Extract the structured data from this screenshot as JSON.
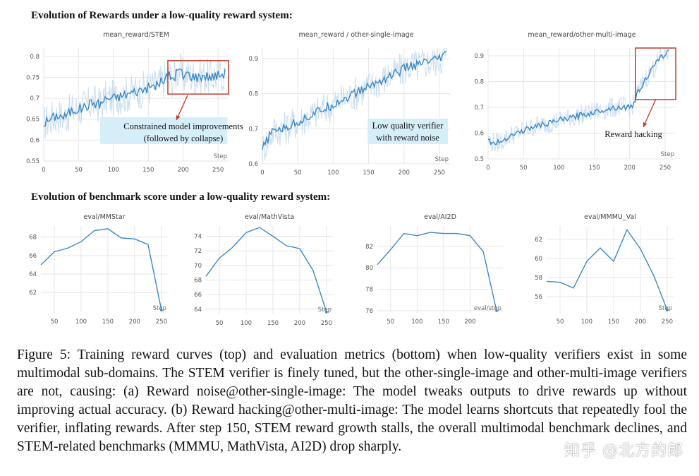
{
  "sections": {
    "top_title": "Evolution of Rewards under a low-quality reward system:",
    "bottom_title": "Evolution of benchmark score under a low-quality reward system:"
  },
  "caption": "Figure 5: Training reward curves (top) and evaluation metrics (bottom) when low-quality verifiers exist in some multimodal sub-domains. The STEM verifier is finely tuned, but the other-single-image and other-multi-image verifiers are not, causing: (a) Reward noise@other-single-image: The model tweaks outputs to drive rewards up without improving actual accuracy. (b) Reward hacking@other-multi-image: The model learns shortcuts that repeatedly fool the verifier, inflating rewards. After step 150, STEM reward growth stalls, the overall multimodal benchmark declines, and STEM-related benchmarks (MMMU, MathVista, AI2D) drop sharply.",
  "watermark": "知乎 @北方的郎",
  "colors": {
    "line": "#3a86c8",
    "noise": "#c9ddf0",
    "highlight_box": "#c0392b",
    "annotation_bg": "#d6eef8"
  },
  "chart_data": [
    {
      "id": "stem",
      "type": "line",
      "title": "mean_reward/STEM",
      "xlabel": "Step",
      "xlim": [
        0,
        265
      ],
      "ylim": [
        0.55,
        0.82
      ],
      "xticks": [
        0,
        50,
        100,
        150,
        200,
        250
      ],
      "yticks": [
        0.55,
        0.6,
        0.65,
        0.7,
        0.75,
        0.8
      ],
      "ytick_labels": [
        "0.55",
        "0.6",
        "0.65",
        "0.7",
        "0.75",
        "0.8"
      ],
      "x": [
        0,
        10,
        20,
        30,
        40,
        50,
        60,
        70,
        80,
        90,
        100,
        110,
        120,
        130,
        140,
        150,
        160,
        170,
        180,
        185,
        190,
        195,
        200,
        205,
        210,
        220,
        230,
        240,
        250,
        260
      ],
      "y": [
        0.64,
        0.65,
        0.66,
        0.655,
        0.67,
        0.675,
        0.68,
        0.69,
        0.685,
        0.7,
        0.7,
        0.705,
        0.71,
        0.715,
        0.72,
        0.725,
        0.73,
        0.74,
        0.755,
        0.745,
        0.76,
        0.77,
        0.75,
        0.76,
        0.755,
        0.75,
        0.755,
        0.75,
        0.755,
        0.76
      ],
      "noise_amplitude": 0.045,
      "highlight": {
        "x": [
          178,
          265
        ],
        "y": [
          0.71,
          0.79
        ]
      },
      "annotation": {
        "lines": [
          "Constrained model improvements",
          "(followed by collapse)"
        ]
      }
    },
    {
      "id": "single",
      "type": "line",
      "title": "mean_reward / other-single-image",
      "xlabel": "Step",
      "xlim": [
        0,
        265
      ],
      "ylim": [
        0.6,
        0.93
      ],
      "xticks": [
        0,
        50,
        100,
        150,
        200,
        250
      ],
      "yticks": [
        0.6,
        0.7,
        0.8,
        0.9
      ],
      "ytick_labels": [
        "0.6",
        "0.7",
        "0.8",
        "0.9"
      ],
      "x": [
        0,
        10,
        20,
        30,
        40,
        50,
        60,
        70,
        80,
        90,
        100,
        110,
        120,
        130,
        140,
        150,
        160,
        170,
        180,
        190,
        200,
        210,
        220,
        230,
        240,
        250,
        260
      ],
      "y": [
        0.64,
        0.68,
        0.7,
        0.7,
        0.71,
        0.72,
        0.73,
        0.74,
        0.75,
        0.76,
        0.77,
        0.78,
        0.79,
        0.8,
        0.81,
        0.82,
        0.83,
        0.84,
        0.85,
        0.86,
        0.87,
        0.88,
        0.88,
        0.89,
        0.89,
        0.9,
        0.91
      ],
      "noise_amplitude": 0.05,
      "annotation": {
        "lines": [
          "Low quality verifier",
          "with reward noise"
        ]
      }
    },
    {
      "id": "multi",
      "type": "line",
      "title": "mean_reward/other-multi-image",
      "xlabel": "Step",
      "xlim": [
        0,
        265
      ],
      "ylim": [
        0.5,
        0.93
      ],
      "xticks": [
        0,
        50,
        100,
        150,
        200,
        250
      ],
      "yticks": [
        0.5,
        0.6,
        0.7,
        0.8,
        0.9
      ],
      "ytick_labels": [
        "0.5",
        "0.6",
        "0.7",
        "0.8",
        "0.9"
      ],
      "x": [
        0,
        10,
        20,
        30,
        40,
        50,
        60,
        70,
        80,
        90,
        100,
        110,
        120,
        130,
        140,
        150,
        160,
        170,
        180,
        190,
        200,
        205,
        210,
        220,
        230,
        240,
        250,
        255
      ],
      "y": [
        0.57,
        0.56,
        0.57,
        0.59,
        0.6,
        0.61,
        0.62,
        0.63,
        0.635,
        0.64,
        0.65,
        0.655,
        0.66,
        0.67,
        0.675,
        0.68,
        0.69,
        0.695,
        0.7,
        0.7,
        0.7,
        0.71,
        0.75,
        0.8,
        0.84,
        0.88,
        0.91,
        0.915
      ],
      "noise_amplitude": 0.04,
      "highlight": {
        "x": [
          208,
          265
        ],
        "y": [
          0.73,
          0.93
        ]
      },
      "annotation": {
        "lines": [
          "Reward hacking"
        ]
      }
    },
    {
      "id": "mmstar",
      "type": "line",
      "title": "eval/MMStar",
      "xlabel": "Step",
      "xlim": [
        25,
        262
      ],
      "ylim": [
        59.8,
        69.2
      ],
      "xticks": [
        50,
        100,
        150,
        200,
        250
      ],
      "yticks": [
        62,
        64,
        66,
        68
      ],
      "ytick_labels": [
        "62",
        "64",
        "66",
        "68"
      ],
      "x": [
        25,
        50,
        75,
        100,
        125,
        150,
        175,
        200,
        225,
        250
      ],
      "y": [
        65.0,
        66.4,
        66.8,
        67.5,
        68.7,
        68.9,
        67.9,
        67.8,
        67.2,
        60.1
      ]
    },
    {
      "id": "mathvista",
      "type": "line",
      "title": "eval/MathVista",
      "xlabel": "Step",
      "xlim": [
        25,
        262
      ],
      "ylim": [
        63.3,
        75.4
      ],
      "xticks": [
        50,
        100,
        150,
        200,
        250
      ],
      "yticks": [
        64,
        66,
        68,
        70,
        72,
        74
      ],
      "ytick_labels": [
        "64",
        "66",
        "68",
        "70",
        "72",
        "74"
      ],
      "x": [
        25,
        50,
        75,
        100,
        125,
        150,
        175,
        200,
        225,
        250
      ],
      "y": [
        68.5,
        71.0,
        72.5,
        74.5,
        75.2,
        74.0,
        72.7,
        72.3,
        69.3,
        63.6
      ]
    },
    {
      "id": "ai2d",
      "type": "line",
      "title": "eval/AI2D",
      "xlabel": "eval/step",
      "xlim": [
        25,
        262
      ],
      "ylim": [
        75.8,
        83.9
      ],
      "xticks": [
        50,
        100,
        150,
        200
      ],
      "yticks": [
        76,
        78,
        80,
        82
      ],
      "ytick_labels": [
        "76",
        "78",
        "80",
        "82"
      ],
      "x": [
        25,
        50,
        75,
        100,
        125,
        150,
        175,
        200,
        225,
        250
      ],
      "y": [
        80.3,
        81.7,
        83.2,
        83.0,
        83.3,
        83.2,
        83.2,
        83.0,
        81.5,
        76.0
      ]
    },
    {
      "id": "mmmu",
      "type": "line",
      "title": "eval/MMMU_Val",
      "xlabel": "Step",
      "xlim": [
        25,
        262
      ],
      "ylim": [
        54.3,
        63.4
      ],
      "xticks": [
        50,
        100,
        150,
        200,
        250
      ],
      "yticks": [
        56,
        58,
        60,
        62
      ],
      "ytick_labels": [
        "56",
        "58",
        "60",
        "62"
      ],
      "x": [
        25,
        50,
        75,
        100,
        125,
        150,
        175,
        200,
        225,
        250
      ],
      "y": [
        57.6,
        57.5,
        56.9,
        59.7,
        61.1,
        59.7,
        63.0,
        61.0,
        58.2,
        54.6
      ]
    }
  ]
}
